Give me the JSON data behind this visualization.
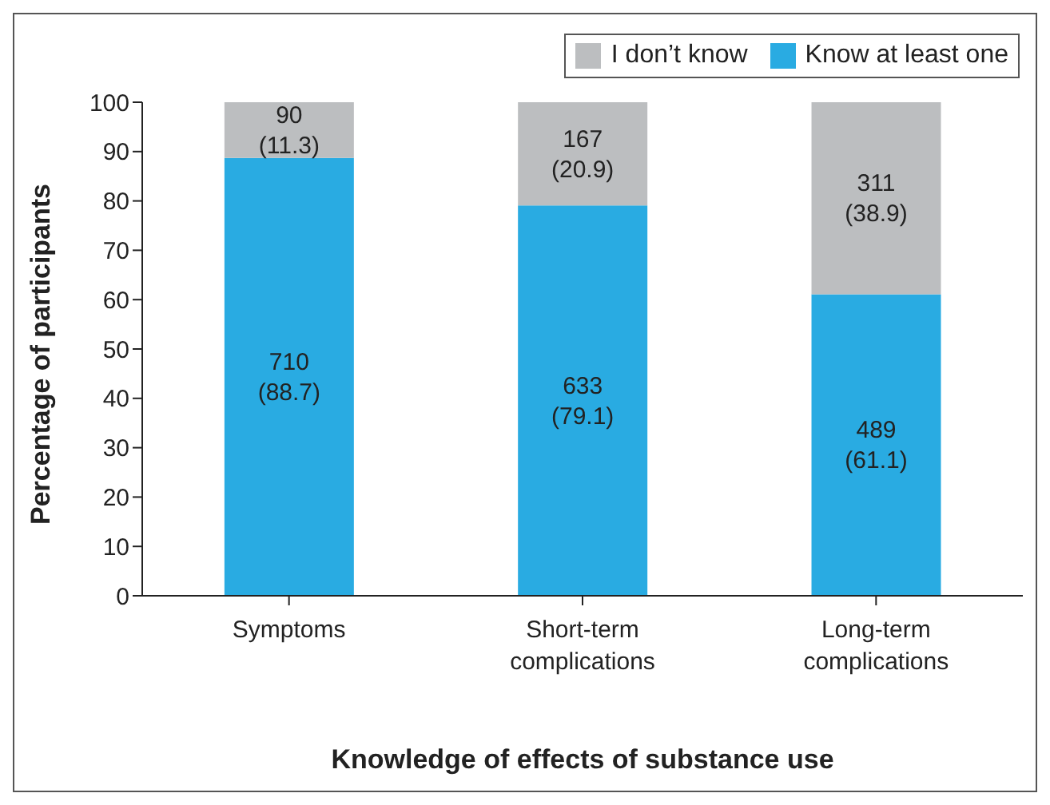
{
  "chart_data": {
    "type": "bar",
    "stacked": true,
    "xlabel": "Knowledge of effects of substance use",
    "ylabel": "Percentage of participants",
    "categories": [
      "Symptoms",
      "Short-term complications",
      "Long-term complications"
    ],
    "series": [
      {
        "name": "Know at least one",
        "color": "#29abe2",
        "values": [
          88.7,
          79.1,
          61.1
        ],
        "value_labels": [
          "710\n(88.7)",
          "633\n(79.1)",
          "489\n(61.1)"
        ]
      },
      {
        "name": "I don’t know",
        "color": "#bcbec0",
        "values": [
          11.3,
          20.9,
          38.9
        ],
        "value_labels": [
          "90\n(11.3)",
          "167\n(20.9)",
          "311\n(38.9)"
        ]
      }
    ],
    "ylim": [
      0,
      100
    ],
    "yticks": [
      0,
      10,
      20,
      30,
      40,
      50,
      60,
      70,
      80,
      90,
      100
    ],
    "grid": false,
    "legend": "top right"
  }
}
